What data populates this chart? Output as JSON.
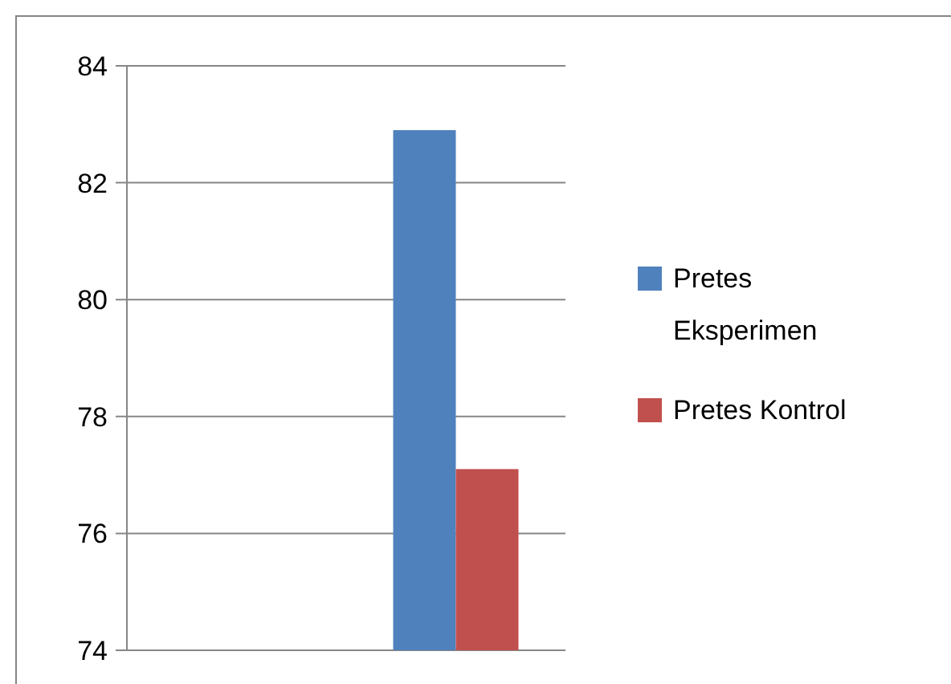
{
  "chart_data": {
    "type": "bar",
    "categories": [
      null,
      null
    ],
    "series": [
      {
        "name": "Pretes Eksperimen",
        "color": "#4f81bd",
        "values": [
          null,
          82.9
        ]
      },
      {
        "name": "Pretes Kontrol",
        "color": "#c0504d",
        "values": [
          null,
          77.1
        ]
      }
    ],
    "ylim": [
      74,
      84
    ],
    "yticks": [
      74,
      76,
      78,
      80,
      82,
      84
    ],
    "grid": "y",
    "legend": "right"
  }
}
